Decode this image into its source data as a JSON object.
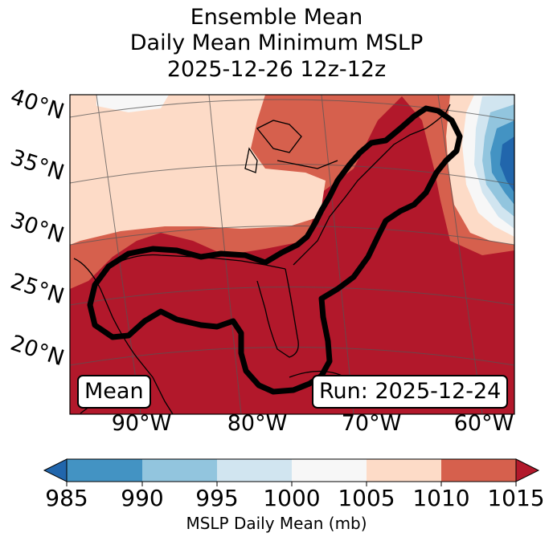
{
  "title": {
    "line1": "Ensemble Mean",
    "line2": "Daily Mean Minimum MSLP",
    "line3": "2025-12-26 12z-12z"
  },
  "map": {
    "lat_labels": [
      "40°N",
      "35°N",
      "30°N",
      "25°N",
      "20°N"
    ],
    "lon_labels": [
      "90°W",
      "80°W",
      "70°W",
      "60°W"
    ],
    "box_left": "Mean",
    "box_right": "Run: 2025-12-24",
    "contour_color": "#000000",
    "region_focus": "Eastern United States, Gulf of Mexico, western Atlantic"
  },
  "colorbar": {
    "label": "MSLP Daily Mean (mb)",
    "ticks": [
      "985",
      "990",
      "995",
      "1000",
      "1005",
      "1010",
      "1015"
    ],
    "bins": [
      {
        "range": "<985",
        "color": "#2166ac"
      },
      {
        "range": "985-990",
        "color": "#4393c3"
      },
      {
        "range": "990-995",
        "color": "#92c5de"
      },
      {
        "range": "995-1000",
        "color": "#d1e5f0"
      },
      {
        "range": "1000-1005",
        "color": "#f7f7f7"
      },
      {
        "range": "1005-1010",
        "color": "#fddbc7"
      },
      {
        "range": "1010-1015",
        "color": "#d6604d"
      },
      {
        "range": ">1015",
        "color": "#b2182b"
      }
    ]
  }
}
